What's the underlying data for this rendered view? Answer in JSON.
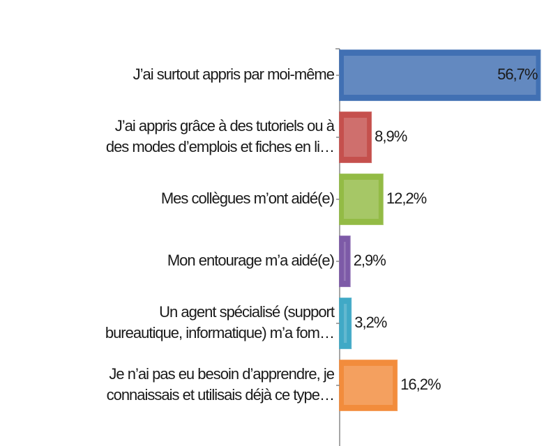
{
  "chart_data": {
    "type": "bar",
    "categories": [
      [
        "J’ai surtout appris par moi-même"
      ],
      [
        "J’ai appris grâce à des tutoriels ou à",
        "des modes d’emplois et fiches en li…"
      ],
      [
        "Mes collègues m’ont aidé(e)"
      ],
      [
        "Mon entourage m’a aidé(e)"
      ],
      [
        "Un agent spécialisé (support",
        "bureautique, informatique) m’a fom…"
      ],
      [
        "Je n’ai pas eu besoin d’apprendre, je",
        "connaissais et utilisais déjà ce type…"
      ]
    ],
    "values": [
      56.7,
      8.9,
      12.2,
      2.9,
      3.2,
      16.2
    ],
    "value_labels": [
      "56,7%",
      "8,9%",
      "12,2%",
      "2,9%",
      "3,2%",
      "16,2%"
    ],
    "colors": [
      "#4170b3",
      "#c5504d",
      "#93bb45",
      "#7d5aa7",
      "#40a9c6",
      "#f28c3c"
    ]
  }
}
